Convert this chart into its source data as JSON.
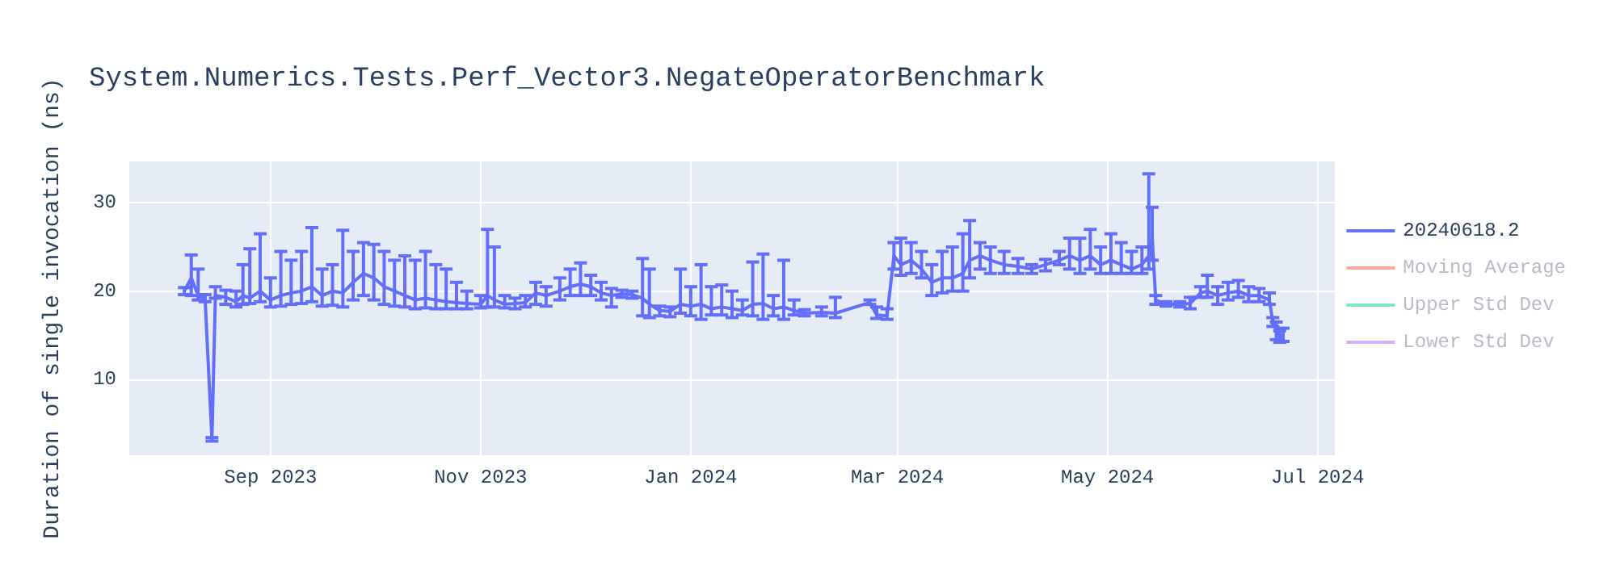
{
  "chart_data": {
    "type": "line",
    "title": "System.Numerics.Tests.Perf_Vector3.NegateOperatorBenchmark",
    "ylabel": "Duration of single invocation (ns)",
    "xlim": [
      "2023-07-22",
      "2024-07-06"
    ],
    "xticks": [
      {
        "value": "2023-09-01",
        "label": "Sep 2023"
      },
      {
        "value": "2023-11-01",
        "label": "Nov 2023"
      },
      {
        "value": "2024-01-01",
        "label": "Jan 2024"
      },
      {
        "value": "2024-03-01",
        "label": "Mar 2024"
      },
      {
        "value": "2024-05-01",
        "label": "May 2024"
      },
      {
        "value": "2024-07-01",
        "label": "Jul 2024"
      }
    ],
    "ylim": [
      1.4,
      34.7
    ],
    "yticks": [
      10,
      20,
      30
    ],
    "grid": true,
    "legend": "top right",
    "marker": "none",
    "line_style": "solid",
    "series": [
      {
        "name": "20240618.2",
        "color": "#636efa",
        "x": [
          "2023-08-07",
          "2023-08-09",
          "2023-08-11",
          "2023-08-13",
          "2023-08-15",
          "2023-08-16",
          "2023-08-19",
          "2023-08-22",
          "2023-08-24",
          "2023-08-26",
          "2023-08-29",
          "2023-09-01",
          "2023-09-04",
          "2023-09-07",
          "2023-09-10",
          "2023-09-13",
          "2023-09-16",
          "2023-09-19",
          "2023-09-22",
          "2023-09-25",
          "2023-09-28",
          "2023-10-01",
          "2023-10-04",
          "2023-10-07",
          "2023-10-10",
          "2023-10-13",
          "2023-10-16",
          "2023-10-19",
          "2023-10-22",
          "2023-10-25",
          "2023-10-28",
          "2023-11-01",
          "2023-11-03",
          "2023-11-05",
          "2023-11-08",
          "2023-11-11",
          "2023-11-14",
          "2023-11-17",
          "2023-11-20",
          "2023-11-24",
          "2023-11-27",
          "2023-11-30",
          "2023-12-03",
          "2023-12-06",
          "2023-12-09",
          "2023-12-12",
          "2023-12-15",
          "2023-12-18",
          "2023-12-20",
          "2023-12-23",
          "2023-12-26",
          "2023-12-29",
          "2024-01-01",
          "2024-01-04",
          "2024-01-07",
          "2024-01-10",
          "2024-01-13",
          "2024-01-16",
          "2024-01-19",
          "2024-01-22",
          "2024-01-25",
          "2024-01-28",
          "2024-01-31",
          "2024-02-03",
          "2024-02-08",
          "2024-02-12",
          "2024-02-22",
          "2024-02-24",
          "2024-02-27",
          "2024-02-29",
          "2024-03-02",
          "2024-03-05",
          "2024-03-08",
          "2024-03-11",
          "2024-03-14",
          "2024-03-17",
          "2024-03-20",
          "2024-03-22",
          "2024-03-25",
          "2024-03-28",
          "2024-04-01",
          "2024-04-05",
          "2024-04-09",
          "2024-04-13",
          "2024-04-17",
          "2024-04-20",
          "2024-04-23",
          "2024-04-26",
          "2024-04-29",
          "2024-05-02",
          "2024-05-05",
          "2024-05-08",
          "2024-05-11",
          "2024-05-13",
          "2024-05-14",
          "2024-05-15",
          "2024-05-18",
          "2024-05-22",
          "2024-05-25",
          "2024-05-28",
          "2024-05-30",
          "2024-06-02",
          "2024-06-05",
          "2024-06-08",
          "2024-06-11",
          "2024-06-14",
          "2024-06-17",
          "2024-06-18",
          "2024-06-19",
          "2024-06-20",
          "2024-06-21"
        ],
        "values": [
          20.0,
          21.5,
          19.5,
          19.2,
          3.2,
          19.5,
          19.3,
          18.8,
          19.5,
          19.2,
          20.0,
          19.0,
          19.5,
          19.8,
          20.0,
          20.5,
          19.5,
          20.0,
          19.8,
          21.0,
          22.0,
          21.5,
          20.5,
          20.0,
          19.5,
          19.0,
          19.2,
          19.0,
          18.8,
          18.7,
          18.6,
          18.5,
          19.5,
          19.0,
          18.5,
          18.6,
          18.7,
          19.8,
          19.5,
          20.0,
          20.5,
          20.8,
          20.5,
          19.8,
          19.5,
          19.7,
          19.6,
          19.2,
          18.5,
          17.8,
          17.7,
          18.5,
          18.3,
          18.5,
          18.0,
          18.2,
          18.0,
          17.8,
          18.5,
          18.6,
          18.0,
          18.2,
          17.8,
          17.5,
          17.6,
          17.5,
          18.7,
          17.3,
          17.2,
          24.0,
          23.0,
          23.5,
          22.5,
          21.0,
          21.5,
          21.5,
          22.0,
          23.5,
          24.0,
          23.5,
          23.0,
          22.8,
          22.5,
          23.0,
          23.5,
          24.0,
          23.5,
          24.0,
          23.0,
          23.5,
          23.0,
          22.5,
          23.0,
          24.0,
          26.0,
          19.0,
          18.5,
          18.5,
          18.6,
          19.8,
          20.0,
          19.5,
          19.8,
          20.0,
          19.5,
          19.5,
          19.0,
          16.5,
          15.5,
          14.8,
          15.0
        ],
        "errors": [
          [
            19.6,
            20.4
          ],
          [
            19.5,
            24.1
          ],
          [
            19.0,
            22.5
          ],
          [
            18.8,
            19.6
          ],
          [
            3.0,
            3.4
          ],
          [
            19.2,
            20.5
          ],
          [
            18.5,
            20.1
          ],
          [
            18.2,
            20.0
          ],
          [
            18.5,
            23.0
          ],
          [
            18.6,
            24.8
          ],
          [
            18.8,
            26.5
          ],
          [
            18.2,
            21.5
          ],
          [
            18.3,
            24.5
          ],
          [
            18.5,
            23.5
          ],
          [
            18.6,
            24.5
          ],
          [
            18.8,
            27.2
          ],
          [
            18.3,
            22.5
          ],
          [
            18.4,
            23.0
          ],
          [
            18.2,
            26.9
          ],
          [
            19.0,
            24.5
          ],
          [
            19.5,
            25.5
          ],
          [
            19.0,
            25.3
          ],
          [
            18.5,
            24.5
          ],
          [
            18.3,
            23.5
          ],
          [
            18.2,
            24.0
          ],
          [
            18.0,
            23.5
          ],
          [
            18.1,
            24.5
          ],
          [
            18.0,
            23.0
          ],
          [
            18.0,
            22.5
          ],
          [
            18.0,
            21.0
          ],
          [
            18.0,
            20.0
          ],
          [
            18.1,
            19.5
          ],
          [
            18.2,
            27.0
          ],
          [
            18.2,
            25.0
          ],
          [
            18.1,
            19.5
          ],
          [
            18.0,
            19.2
          ],
          [
            18.2,
            19.5
          ],
          [
            18.5,
            21.0
          ],
          [
            18.3,
            20.5
          ],
          [
            19.0,
            21.5
          ],
          [
            19.5,
            22.5
          ],
          [
            19.5,
            23.2
          ],
          [
            19.5,
            21.8
          ],
          [
            19.0,
            21.0
          ],
          [
            18.2,
            20.3
          ],
          [
            19.3,
            20.1
          ],
          [
            19.2,
            20.0
          ],
          [
            17.2,
            23.7
          ],
          [
            17.0,
            22.5
          ],
          [
            17.2,
            18.3
          ],
          [
            17.1,
            18.2
          ],
          [
            17.5,
            22.5
          ],
          [
            17.2,
            20.5
          ],
          [
            16.8,
            23.0
          ],
          [
            17.3,
            20.5
          ],
          [
            17.3,
            20.7
          ],
          [
            17.0,
            20.0
          ],
          [
            17.3,
            19.0
          ],
          [
            17.2,
            23.3
          ],
          [
            16.8,
            24.2
          ],
          [
            17.2,
            19.5
          ],
          [
            16.8,
            23.5
          ],
          [
            17.3,
            19.0
          ],
          [
            17.2,
            17.9
          ],
          [
            17.2,
            18.2
          ],
          [
            17.0,
            19.3
          ],
          [
            18.5,
            19.0
          ],
          [
            16.9,
            18.2
          ],
          [
            16.8,
            18.0
          ],
          [
            22.5,
            25.5
          ],
          [
            21.8,
            26.0
          ],
          [
            22.0,
            25.5
          ],
          [
            21.5,
            24.5
          ],
          [
            19.5,
            23.0
          ],
          [
            19.8,
            24.5
          ],
          [
            20.0,
            25.0
          ],
          [
            20.0,
            26.5
          ],
          [
            21.5,
            28.0
          ],
          [
            22.5,
            25.5
          ],
          [
            22.0,
            25.0
          ],
          [
            22.0,
            24.5
          ],
          [
            22.0,
            23.7
          ],
          [
            22.0,
            23.0
          ],
          [
            22.3,
            23.6
          ],
          [
            23.0,
            24.5
          ],
          [
            22.5,
            26.0
          ],
          [
            22.0,
            26.0
          ],
          [
            22.5,
            27.0
          ],
          [
            22.0,
            25.0
          ],
          [
            22.0,
            26.5
          ],
          [
            22.0,
            25.5
          ],
          [
            22.0,
            24.5
          ],
          [
            22.0,
            25.0
          ],
          [
            22.5,
            33.3
          ],
          [
            23.5,
            29.5
          ],
          [
            18.5,
            19.5
          ],
          [
            18.3,
            18.8
          ],
          [
            18.2,
            18.8
          ],
          [
            18.0,
            19.3
          ],
          [
            19.3,
            20.5
          ],
          [
            19.3,
            21.8
          ],
          [
            18.5,
            20.5
          ],
          [
            19.0,
            21.0
          ],
          [
            19.3,
            21.2
          ],
          [
            18.8,
            20.5
          ],
          [
            18.8,
            20.3
          ],
          [
            18.5,
            19.8
          ],
          [
            16.0,
            17.0
          ],
          [
            14.5,
            16.5
          ],
          [
            14.2,
            15.5
          ],
          [
            14.3,
            15.8
          ]
        ]
      },
      {
        "name": "Moving Average",
        "color": "#f7aa9d"
      },
      {
        "name": "Upper Std Dev",
        "color": "#80e5cb"
      },
      {
        "name": "Lower Std Dev",
        "color": "#d5b1fc"
      }
    ]
  }
}
